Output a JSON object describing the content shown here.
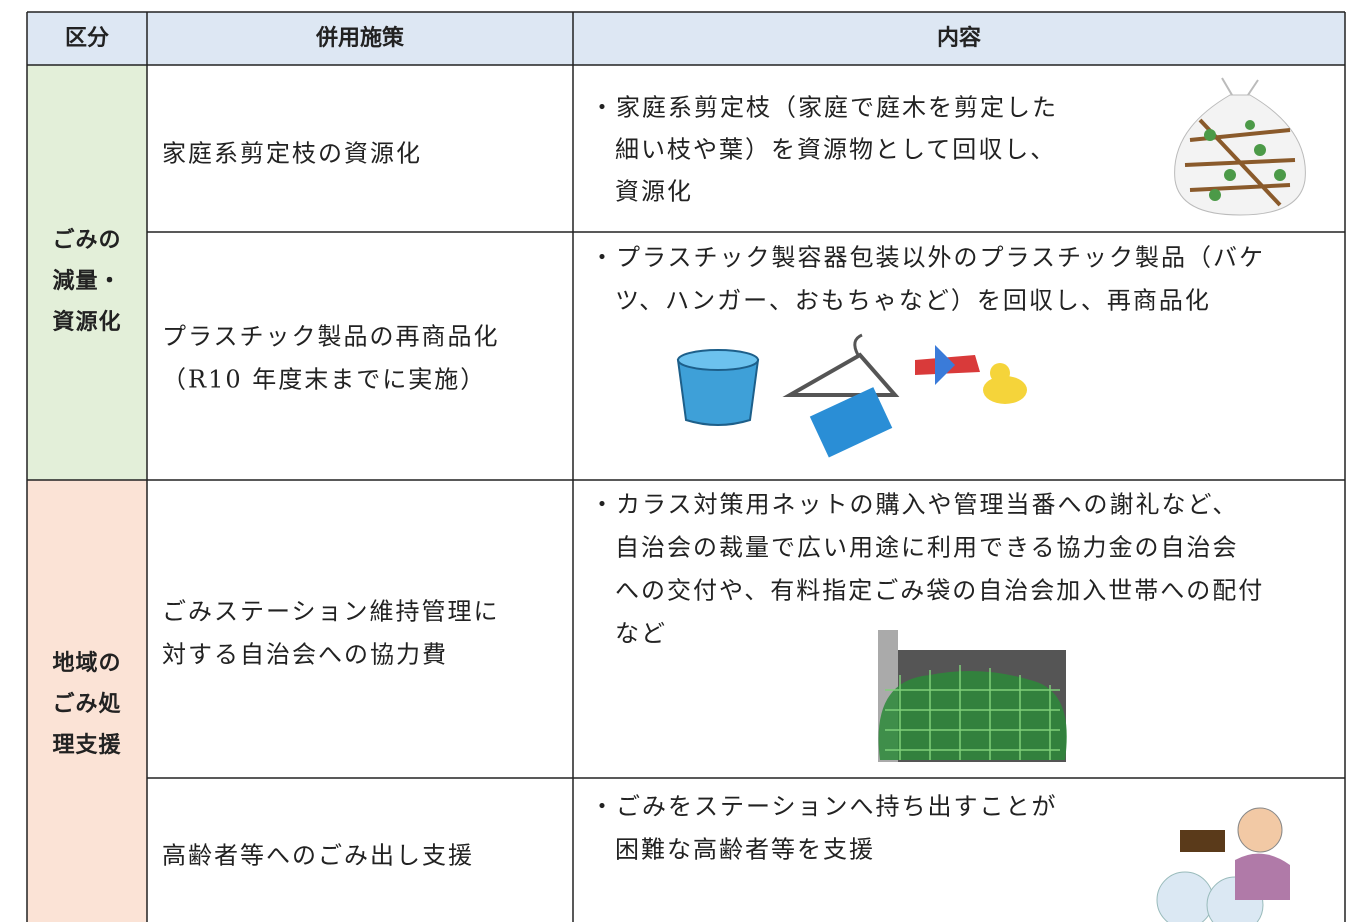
{
  "table": {
    "header": [
      "区分",
      "併用施策",
      "内容"
    ],
    "groups": [
      {
        "category": [
          "ごみの",
          "減量・",
          "資源化"
        ],
        "rows": [
          {
            "measure": [
              "家庭系剪定枝の資源化"
            ],
            "content": [
              "・家庭系剪定枝（家庭で庭木を剪定した",
              "細い枝や葉）を資源物として回収し、",
              "資源化"
            ]
          },
          {
            "measure": [
              "プラスチック製品の再商品化",
              "（R10 年度末までに実施）"
            ],
            "content": [
              "・プラスチック製容器包装以外のプラスチック製品（バケ",
              "ツ、ハンガー、おもちゃなど）を回収し、再商品化"
            ]
          }
        ]
      },
      {
        "category": [
          "地域の",
          "ごみ処",
          "理支援"
        ],
        "rows": [
          {
            "measure": [
              "ごみステーション維持管理に",
              "対する自治会への協力費"
            ],
            "content": [
              "・カラス対策用ネットの購入や管理当番への謝礼など、",
              "自治会の裁量で広い用途に利用できる協力金の自治会",
              "への交付や、有料指定ごみ袋の自治会加入世帯への配付",
              "など"
            ]
          },
          {
            "measure": [
              "高齢者等へのごみ出し支援"
            ],
            "content": [
              "・ごみをステーションへ持ち出すことが",
              "困難な高齢者等を支援"
            ]
          }
        ]
      }
    ]
  }
}
